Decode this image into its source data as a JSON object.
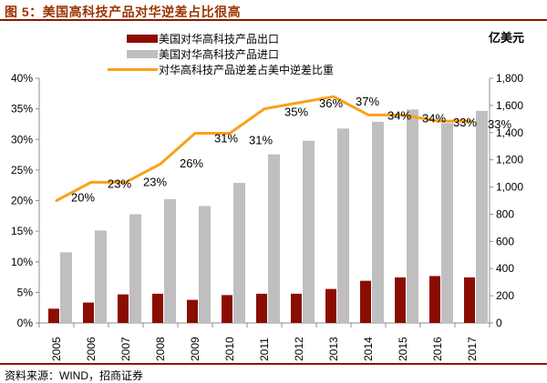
{
  "title": "图 5：美国高科技产品对华逆差占比很高",
  "source_note": "资料来源：WIND，招商证券",
  "right_axis_unit": "亿美元",
  "colors": {
    "title_red": "#993300",
    "divider_red": "#8B1A00",
    "export_bar": "#8B0D02",
    "import_bar": "#BFBFBF",
    "ratio_line": "#F9A11B",
    "axis_line": "#8C8C8C",
    "text": "#000000"
  },
  "chart_data": {
    "type": "bar",
    "subtype": "bar-line-combo",
    "title": "美国高科技产品对华逆差占比很高",
    "categories": [
      "2005",
      "2006",
      "2007",
      "2008",
      "2009",
      "2010",
      "2011",
      "2012",
      "2013",
      "2014",
      "2015",
      "2016",
      "2017"
    ],
    "series": [
      {
        "name": "美国对华高科技产品出口",
        "type": "bar",
        "axis": "right",
        "color": "#8B0D02",
        "values": [
          105,
          150,
          210,
          215,
          170,
          205,
          215,
          215,
          250,
          310,
          335,
          345,
          335
        ]
      },
      {
        "name": "美国对华高科技产品进口",
        "type": "bar",
        "axis": "right",
        "color": "#BFBFBF",
        "values": [
          520,
          680,
          800,
          910,
          860,
          1030,
          1240,
          1340,
          1430,
          1480,
          1570,
          1470,
          1560
        ]
      },
      {
        "name": "对华高科技产品逆差占美中逆差比重",
        "type": "line",
        "axis": "left",
        "color": "#F9A11B",
        "values": [
          20,
          23,
          23,
          26,
          31,
          31,
          35,
          36,
          37,
          34,
          34,
          33,
          33
        ],
        "point_labels": [
          "20%",
          "23%",
          "23%",
          "26%",
          "31%",
          "31%",
          "35%",
          "36%",
          "37%",
          "34%",
          "34%",
          "33%",
          "33%"
        ]
      }
    ],
    "left_axis": {
      "min": 0,
      "max": 40,
      "step": 5,
      "unit": "%",
      "tick_labels": [
        "0%",
        "5%",
        "10%",
        "15%",
        "20%",
        "25%",
        "30%",
        "35%",
        "40%"
      ]
    },
    "right_axis": {
      "min": 0,
      "max": 1800,
      "step": 200,
      "unit": "亿美元",
      "tick_labels": [
        "0",
        "200",
        "400",
        "600",
        "800",
        "1,000",
        "1,200",
        "1,400",
        "1,600",
        "1,800"
      ]
    },
    "grid": "none",
    "legend_position": "top-left"
  }
}
